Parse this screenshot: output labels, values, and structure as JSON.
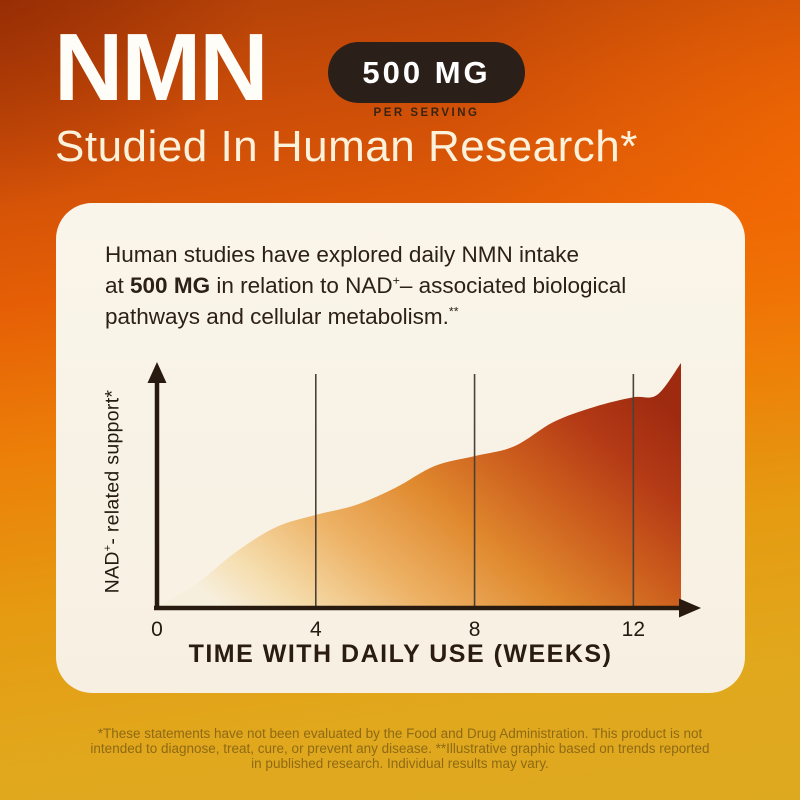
{
  "header": {
    "brand": "NMN",
    "dose_badge": {
      "label": "500 MG",
      "sublabel": "PER SERVING"
    },
    "headline": "Studied In Human Research*"
  },
  "card": {
    "body": {
      "line1": "Human studies have explored daily NMN intake",
      "line2_pre": "at ",
      "line2_bold": "500 MG",
      "line2_mid": " in relation to NAD",
      "line2_sup": "+",
      "line2_post": "– associated biological",
      "line3": "pathways and cellular metabolism.",
      "line3_sup": "**"
    }
  },
  "chart_data": {
    "type": "area",
    "title": "",
    "xlabel": "TIME WITH DAILY USE (WEEKS)",
    "ylabel": "NAD+ - related support*",
    "ylabel_segments": {
      "base1": "NAD",
      "sup": "+",
      "base2": "- related support*"
    },
    "x": [
      0,
      1,
      2,
      3,
      4,
      5,
      6,
      7,
      8,
      9,
      10,
      11,
      12,
      12.6,
      13.2
    ],
    "values": [
      0,
      10,
      23,
      33,
      38,
      42,
      49,
      58,
      62,
      66,
      76,
      82,
      86,
      87,
      100
    ],
    "x_ticks": [
      0,
      4,
      8,
      12
    ],
    "x_tick_labels": [
      "0",
      "4",
      "8",
      "12"
    ],
    "gridlines_x": [
      4,
      8,
      12
    ],
    "xlim": [
      0,
      13.2
    ],
    "ylim": [
      0,
      102
    ],
    "grid": "vertical-only",
    "legend": "none",
    "axis_color": "#281a0e",
    "fill_gradient": [
      {
        "offset": 0,
        "color": "#f7efde"
      },
      {
        "offset": 0.12,
        "color": "#f5dcab"
      },
      {
        "offset": 0.3,
        "color": "#edb266"
      },
      {
        "offset": 0.5,
        "color": "#e0892e"
      },
      {
        "offset": 0.68,
        "color": "#cc5d1d"
      },
      {
        "offset": 0.84,
        "color": "#b53b16"
      },
      {
        "offset": 1,
        "color": "#9e2a10"
      }
    ]
  },
  "footer": {
    "disclaimer_line1": "*These statements have not been evaluated by the Food and Drug Administration. This product is not",
    "disclaimer_line2": "intended to diagnose, treat, cure, or prevent any disease. **Illustrative graphic based on trends reported",
    "disclaimer_line3": "in published research. Individual results may vary."
  },
  "colors": {
    "bg_top_left": "#a23a0e",
    "bg_orange": "#e65f06",
    "bg_gold": "#e0a81c",
    "card_bg": "#f9f3e7",
    "badge_bg": "#2b2019",
    "badge_text": "#ffffff",
    "headline_text": "#fcf1da",
    "body_text": "#2d2015",
    "disclaimer_text": "#8e6a15"
  }
}
